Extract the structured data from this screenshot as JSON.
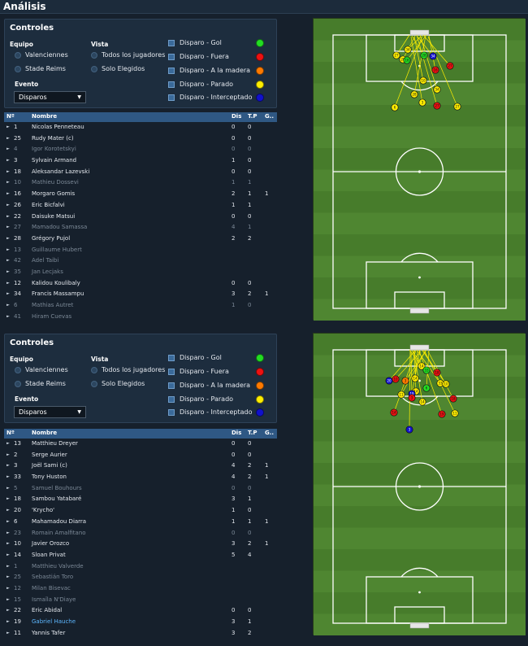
{
  "header": {
    "title": "Análisis"
  },
  "panels": [
    {
      "controls": {
        "title": "Controles",
        "team_label": "Equipo",
        "teams": [
          "Valenciennes",
          "Stade Reims"
        ],
        "view_label": "Vista",
        "views": [
          "Todos los jugadores",
          "Solo Elegidos"
        ],
        "event_label": "Evento",
        "event_value": "Disparos",
        "legend": [
          {
            "label": "Disparo - Gol",
            "color": "#22dd22"
          },
          {
            "label": "Disparo - Fuera",
            "color": "#ee1111"
          },
          {
            "label": "Disparo - A la madera",
            "color": "#ff7a00"
          },
          {
            "label": "Disparo - Parado",
            "color": "#ffee00"
          },
          {
            "label": "Disparo - Interceptado",
            "color": "#1111cc"
          }
        ]
      },
      "table": {
        "headers": [
          "Nº",
          "Nombre",
          "Dis",
          "T.P",
          "G.."
        ],
        "rows": [
          {
            "num": "1",
            "name": "Nicolas Penneteau",
            "dis": "0",
            "tp": "0",
            "g": "",
            "dim": false
          },
          {
            "num": "25",
            "name": "Rudy Mater (c)",
            "dis": "0",
            "tp": "0",
            "g": "",
            "dim": false
          },
          {
            "num": "4",
            "name": "Igor Korotetskyi",
            "dis": "0",
            "tp": "0",
            "g": "",
            "dim": true
          },
          {
            "num": "3",
            "name": "Sylvain Armand",
            "dis": "1",
            "tp": "0",
            "g": "",
            "dim": false
          },
          {
            "num": "18",
            "name": "Aleksandar Lazevski",
            "dis": "0",
            "tp": "0",
            "g": "",
            "dim": false
          },
          {
            "num": "10",
            "name": "Mathieu Dossevi",
            "dis": "1",
            "tp": "1",
            "g": "",
            "dim": true
          },
          {
            "num": "16",
            "name": "Morgaro Gomis",
            "dis": "2",
            "tp": "1",
            "g": "1",
            "dim": false
          },
          {
            "num": "26",
            "name": "Eric Bicfalvi",
            "dis": "1",
            "tp": "1",
            "g": "",
            "dim": false
          },
          {
            "num": "22",
            "name": "Daisuke Matsui",
            "dis": "0",
            "tp": "0",
            "g": "",
            "dim": false
          },
          {
            "num": "27",
            "name": "Mamadou Samassa",
            "dis": "4",
            "tp": "1",
            "g": "",
            "dim": true
          },
          {
            "num": "28",
            "name": "Grégory Pujol",
            "dis": "2",
            "tp": "2",
            "g": "",
            "dim": false
          },
          {
            "num": "13",
            "name": "Guillaume Hubert",
            "dis": "",
            "tp": "",
            "g": "",
            "dim": true
          },
          {
            "num": "42",
            "name": "Adel Taibi",
            "dis": "",
            "tp": "",
            "g": "",
            "dim": true
          },
          {
            "num": "35",
            "name": "Jan Lecjaks",
            "dis": "",
            "tp": "",
            "g": "",
            "dim": true
          },
          {
            "num": "12",
            "name": "Kalidou Koulibaly",
            "dis": "0",
            "tp": "0",
            "g": "",
            "dim": false
          },
          {
            "num": "34",
            "name": "Francis Massampu",
            "dis": "3",
            "tp": "2",
            "g": "1",
            "dim": false
          },
          {
            "num": "6",
            "name": "Mathias Autret",
            "dis": "1",
            "tp": "0",
            "g": "",
            "dim": true
          },
          {
            "num": "41",
            "name": "Hiram Cuevas",
            "dis": "",
            "tp": "",
            "g": "",
            "dim": true
          }
        ]
      }
    },
    {
      "controls": {
        "title": "Controles",
        "team_label": "Equipo",
        "teams": [
          "Valenciennes",
          "Stade Reims"
        ],
        "view_label": "Vista",
        "views": [
          "Todos los jugadores",
          "Solo Elegidos"
        ],
        "event_label": "Evento",
        "event_value": "Disparos",
        "legend": [
          {
            "label": "Disparo - Gol",
            "color": "#22dd22"
          },
          {
            "label": "Disparo - Fuera",
            "color": "#ee1111"
          },
          {
            "label": "Disparo - A la madera",
            "color": "#ff7a00"
          },
          {
            "label": "Disparo - Parado",
            "color": "#ffee00"
          },
          {
            "label": "Disparo - Interceptado",
            "color": "#1111cc"
          }
        ]
      },
      "table": {
        "headers": [
          "Nº",
          "Nombre",
          "Dis",
          "T.P",
          "G.."
        ],
        "rows": [
          {
            "num": "13",
            "name": "Matthieu Dreyer",
            "dis": "0",
            "tp": "0",
            "g": "",
            "dim": false
          },
          {
            "num": "2",
            "name": "Serge Aurier",
            "dis": "0",
            "tp": "0",
            "g": "",
            "dim": false
          },
          {
            "num": "3",
            "name": "Joël Sami (c)",
            "dis": "4",
            "tp": "2",
            "g": "1",
            "dim": false
          },
          {
            "num": "33",
            "name": "Tony Huston",
            "dis": "4",
            "tp": "2",
            "g": "1",
            "dim": false
          },
          {
            "num": "5",
            "name": "Samuel Bouhours",
            "dis": "0",
            "tp": "0",
            "g": "",
            "dim": true
          },
          {
            "num": "18",
            "name": "Sambou Yatabaré",
            "dis": "3",
            "tp": "1",
            "g": "",
            "dim": false
          },
          {
            "num": "20",
            "name": "'Krycho'",
            "dis": "1",
            "tp": "0",
            "g": "",
            "dim": false
          },
          {
            "num": "6",
            "name": "Mahamadou Diarra",
            "dis": "1",
            "tp": "1",
            "g": "1",
            "dim": false
          },
          {
            "num": "23",
            "name": "Romain Amalfitano",
            "dis": "0",
            "tp": "0",
            "g": "",
            "dim": true
          },
          {
            "num": "10",
            "name": "Javier Orozco",
            "dis": "3",
            "tp": "2",
            "g": "1",
            "dim": false
          },
          {
            "num": "14",
            "name": "Sloan Privat",
            "dis": "5",
            "tp": "4",
            "g": "",
            "dim": false
          },
          {
            "num": "1",
            "name": "Matthieu Valverde",
            "dis": "",
            "tp": "",
            "g": "",
            "dim": true
          },
          {
            "num": "25",
            "name": "Sebastián Toro",
            "dis": "",
            "tp": "",
            "g": "",
            "dim": true
          },
          {
            "num": "12",
            "name": "Milan Bisevac",
            "dis": "",
            "tp": "",
            "g": "",
            "dim": true
          },
          {
            "num": "15",
            "name": "Ismaïla N'Diaye",
            "dis": "",
            "tp": "",
            "g": "",
            "dim": true
          },
          {
            "num": "22",
            "name": "Eric Abidal",
            "dis": "0",
            "tp": "0",
            "g": "",
            "dim": false
          },
          {
            "num": "19",
            "name": "Gabriel Hauche",
            "dis": "3",
            "tp": "1",
            "g": "",
            "dim": false,
            "link": true
          },
          {
            "num": "11",
            "name": "Yannis Tafer",
            "dis": "3",
            "tp": "2",
            "g": "",
            "dim": false
          }
        ]
      }
    }
  ],
  "shot_maps": [
    {
      "shots": [
        {
          "num": "27",
          "color": "#ffee00"
        },
        {
          "num": "26",
          "color": "#ffee00"
        },
        {
          "num": "34",
          "color": "#ffee00"
        },
        {
          "num": "16",
          "color": "#22dd22"
        },
        {
          "num": "28",
          "color": "#22dd22"
        },
        {
          "num": "34",
          "color": "#1111cc"
        },
        {
          "num": "27",
          "color": "#ee1111"
        },
        {
          "num": "16",
          "color": "#ee1111"
        },
        {
          "num": "10",
          "color": "#ffee00"
        },
        {
          "num": "34",
          "color": "#ffee00"
        },
        {
          "num": "28",
          "color": "#ffee00"
        },
        {
          "num": "3",
          "color": "#ffee00"
        },
        {
          "num": "27",
          "color": "#ee1111"
        },
        {
          "num": "6",
          "color": "#ffee00"
        },
        {
          "num": "27",
          "color": "#ffee00"
        }
      ]
    },
    {
      "shots": [
        {
          "num": "14",
          "color": "#ffee00"
        },
        {
          "num": "20",
          "color": "#1111cc"
        },
        {
          "num": "10",
          "color": "#ee1111"
        },
        {
          "num": "3",
          "color": "#ff7a00"
        },
        {
          "num": "33",
          "color": "#22dd22"
        },
        {
          "num": "14",
          "color": "#ffee00"
        },
        {
          "num": "18",
          "color": "#ee1111"
        },
        {
          "num": "6",
          "color": "#22dd22"
        },
        {
          "num": "14",
          "color": "#ffee00"
        },
        {
          "num": "19",
          "color": "#1111cc"
        },
        {
          "num": "11",
          "color": "#ffee00"
        },
        {
          "num": "3",
          "color": "#ee1111"
        },
        {
          "num": "33",
          "color": "#ffee00"
        },
        {
          "num": "10",
          "color": "#ffee00"
        },
        {
          "num": "18",
          "color": "#ee1111"
        },
        {
          "num": "14",
          "color": "#ffee00"
        },
        {
          "num": "19",
          "color": "#ee1111"
        },
        {
          "num": "11",
          "color": "#ffee00"
        },
        {
          "num": "3",
          "color": "#1111cc"
        },
        {
          "num": "14",
          "color": "#ee1111"
        }
      ]
    }
  ]
}
